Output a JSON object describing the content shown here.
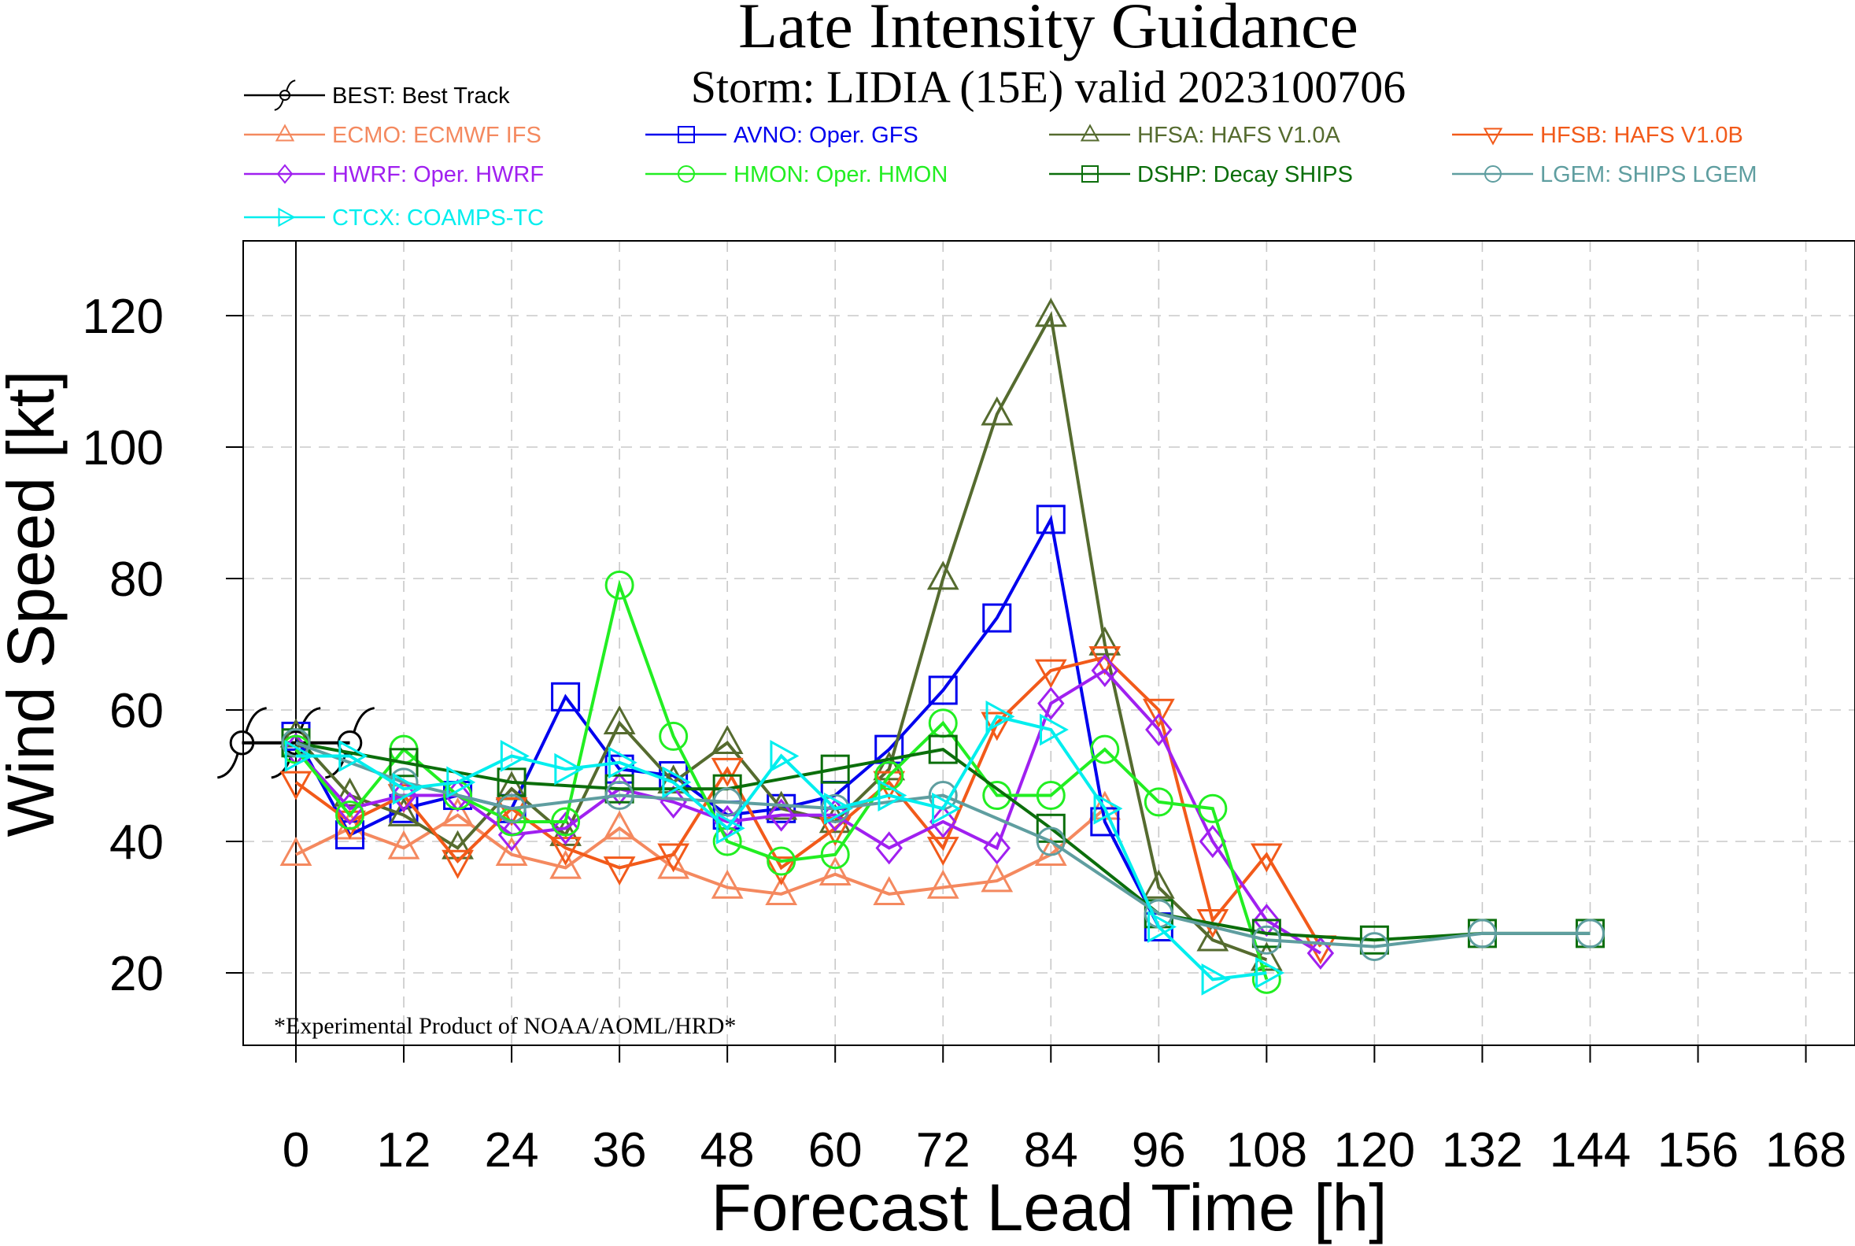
{
  "title": "Late Intensity Guidance",
  "subtitle": "Storm: LIDIA (15E) valid 2023100706",
  "footnote": "*Experimental Product of NOAA/AOML/HRD*",
  "chart_data": {
    "type": "line",
    "title": "Late Intensity Guidance",
    "subtitle": "Storm: LIDIA (15E) valid 2023100706",
    "xlabel": "Forecast Lead Time [h]",
    "ylabel": "Wind Speed [kt]",
    "xlim": [
      -12,
      174
    ],
    "ylim": [
      8,
      130
    ],
    "xticks": [
      0,
      12,
      24,
      36,
      48,
      60,
      72,
      84,
      96,
      108,
      120,
      132,
      144,
      156,
      168
    ],
    "yticks": [
      20,
      40,
      60,
      80,
      100,
      120
    ],
    "grid": true,
    "legend_position": "top",
    "series": [
      {
        "name": "BEST: Best Track",
        "color": "#000000",
        "marker": "hurricane",
        "x": [
          -6,
          0,
          6
        ],
        "y": [
          55,
          55,
          55
        ]
      },
      {
        "name": "ECMO: ECMWF IFS",
        "color": "#f4895f",
        "marker": "triangle-up",
        "x": [
          0,
          6,
          12,
          18,
          24,
          30,
          36,
          42,
          48,
          54,
          60,
          66,
          72,
          78,
          84,
          90
        ],
        "y": [
          38,
          42,
          39,
          44,
          38,
          36,
          42,
          36,
          33,
          32,
          35,
          32,
          33,
          34,
          38,
          45
        ]
      },
      {
        "name": "AVNO: Oper. GFS",
        "color": "#0000ee",
        "marker": "square",
        "x": [
          0,
          6,
          12,
          18,
          24,
          30,
          36,
          42,
          48,
          54,
          60,
          66,
          72,
          78,
          84,
          90,
          96
        ],
        "y": [
          56,
          41,
          45,
          47,
          45,
          62,
          51,
          50,
          44,
          45,
          47,
          54,
          63,
          74,
          89,
          43,
          27
        ]
      },
      {
        "name": "HFSA: HAFS V1.0A",
        "color": "#556b2f",
        "marker": "triangle-up",
        "x": [
          0,
          6,
          12,
          18,
          24,
          30,
          36,
          42,
          48,
          54,
          60,
          66,
          72,
          78,
          84,
          90,
          96,
          102,
          108
        ],
        "y": [
          56,
          47,
          44,
          39,
          48,
          41,
          58,
          49,
          55,
          45,
          43,
          51,
          80,
          105,
          120,
          70,
          33,
          25,
          22
        ]
      },
      {
        "name": "HFSB: HAFS V1.0B",
        "color": "#f25a1a",
        "marker": "triangle-down",
        "x": [
          0,
          6,
          12,
          18,
          24,
          30,
          36,
          42,
          48,
          54,
          60,
          66,
          72,
          78,
          84,
          90,
          96,
          102,
          108,
          114
        ],
        "y": [
          49,
          43,
          47,
          37,
          45,
          39,
          36,
          38,
          51,
          36,
          42,
          49,
          39,
          58,
          66,
          68,
          60,
          28,
          38,
          24
        ]
      },
      {
        "name": "HWRF: Oper. HWRF",
        "color": "#a020f0",
        "marker": "diamond",
        "x": [
          0,
          6,
          12,
          18,
          24,
          30,
          36,
          42,
          48,
          54,
          60,
          66,
          72,
          78,
          84,
          90,
          96,
          102,
          108,
          114
        ],
        "y": [
          54,
          45,
          47,
          47,
          41,
          42,
          48,
          46,
          43,
          44,
          44,
          39,
          43,
          39,
          61,
          66,
          57,
          40,
          28,
          23
        ]
      },
      {
        "name": "HMON: Oper. HMON",
        "color": "#22ee22",
        "marker": "circle",
        "x": [
          0,
          6,
          12,
          18,
          24,
          30,
          36,
          42,
          48,
          54,
          60,
          66,
          72,
          78,
          84,
          90,
          96,
          102,
          108
        ],
        "y": [
          54,
          44,
          54,
          47,
          43,
          43,
          79,
          56,
          40,
          37,
          38,
          50,
          58,
          47,
          47,
          54,
          46,
          45,
          19
        ]
      },
      {
        "name": "DSHP: Decay SHIPS",
        "color": "#0b6e0b",
        "marker": "square",
        "x": [
          0,
          12,
          24,
          36,
          48,
          60,
          72,
          84,
          96,
          108,
          120,
          132,
          144
        ],
        "y": [
          55,
          52,
          49,
          48,
          48,
          51,
          54,
          42,
          29,
          26,
          25,
          26,
          26
        ]
      },
      {
        "name": "LGEM: SHIPS LGEM",
        "color": "#5f9ea0",
        "marker": "circle",
        "x": [
          0,
          12,
          24,
          36,
          48,
          60,
          72,
          84,
          96,
          108,
          120,
          132,
          144
        ],
        "y": [
          55,
          49,
          45,
          47,
          46,
          45,
          47,
          40,
          29,
          25,
          24,
          26,
          26
        ]
      },
      {
        "name": "CTCX: COAMPS-TC",
        "color": "#00eeee",
        "marker": "triangle-right",
        "x": [
          0,
          6,
          12,
          18,
          24,
          30,
          36,
          42,
          48,
          54,
          60,
          66,
          72,
          78,
          84,
          90,
          96,
          102,
          108
        ],
        "y": [
          53,
          53,
          48,
          49,
          53,
          51,
          52,
          49,
          42,
          53,
          45,
          47,
          45,
          59,
          57,
          45,
          27,
          19,
          20
        ]
      }
    ]
  }
}
